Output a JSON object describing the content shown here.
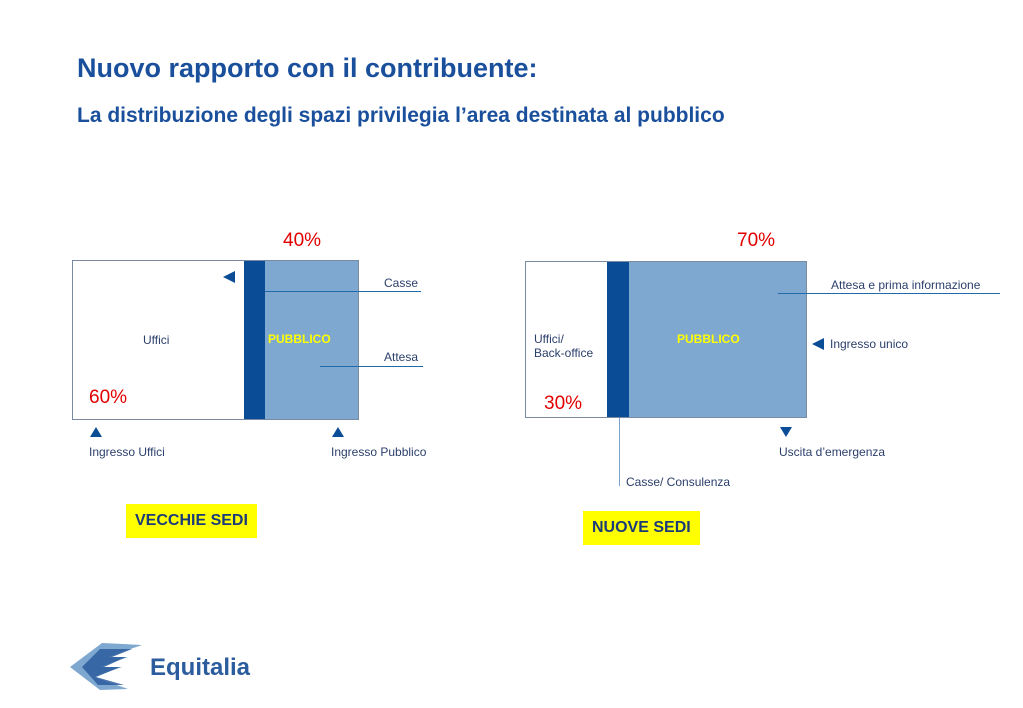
{
  "slide": {
    "title": "Nuovo rapporto con il contribuente:",
    "subtitle": "La distribuzione degli spazi privilegia l’area destinata al pubblico"
  },
  "old_site": {
    "public_pct": "40%",
    "office_pct": "60%",
    "offices_label": "Uffici",
    "public_label": "PUBBLICO",
    "cashiers_label": "Casse",
    "waiting_label": "Attesa",
    "office_entrance": "Ingresso Uffici",
    "public_entrance": "Ingresso Pubblico",
    "tag": "VECCHIE SEDI"
  },
  "new_site": {
    "public_pct": "70%",
    "office_pct": "30%",
    "offices_label_1": "Uffici/",
    "offices_label_2": "Back-office",
    "public_label": "PUBBLICO",
    "waiting_label": "Attesa e prima informazione",
    "single_entrance": "Ingresso unico",
    "emergency_exit": "Uscita d’emergenza",
    "cashiers_label": "Casse/ Consulenza",
    "tag": "NUOVE SEDI"
  },
  "logo": {
    "text": "Equitalia",
    "icon": "equitalia-logo-icon"
  },
  "colors": {
    "title": "#1a4f9c",
    "public_area": "#7fa8d0",
    "dark_band": "#0b4c96",
    "percent": "#e00000",
    "tag_background": "#ffff00",
    "public_label": "#ffff00"
  }
}
